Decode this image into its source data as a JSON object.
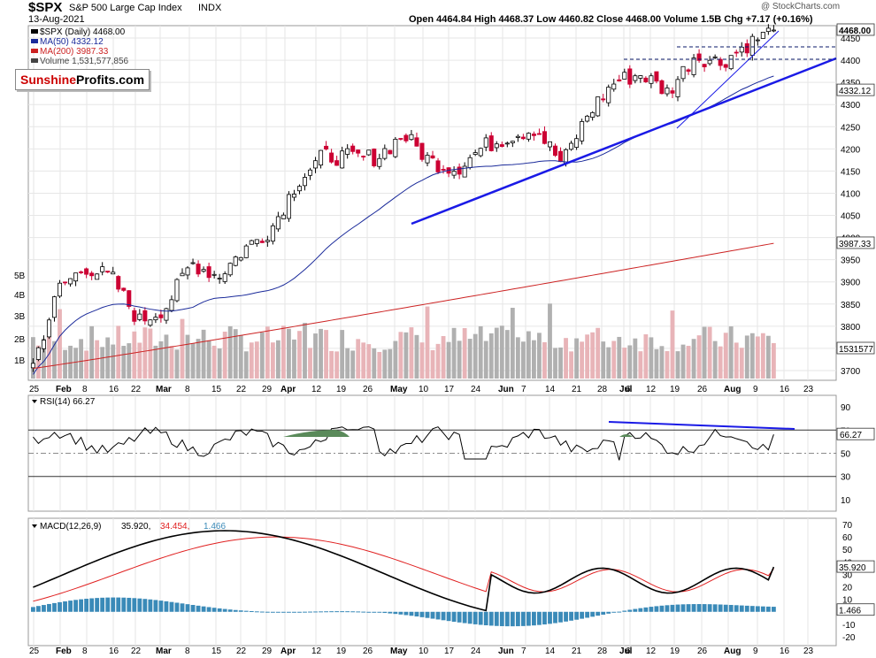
{
  "header": {
    "symbol": "$SPX",
    "name": "S&P 500 Large Cap Index",
    "exchange": "INDX",
    "date": "13-Aug-2021",
    "quote": "Open 4464.84  High 4468.37  Low 4460.82  Close 4468.00  Volume 1.5B  Chg +7.17 (+0.16%)",
    "quote_arrow": "▲",
    "watermark": "@ StockCharts.com"
  },
  "legend": {
    "spx": "$SPX (Daily) 4468.00",
    "ma50": "MA(50) 4332.12",
    "ma200": "MA(200) 3987.33",
    "volume": "Volume 1,531,577,856"
  },
  "logo": {
    "part1": "Sunshine",
    "part2": "Profits.com"
  },
  "colors": {
    "up": "#000000",
    "down": "#cc0033",
    "ma50": "#1a2a9a",
    "ma200": "#cc2222",
    "trend": "#1a1ae6",
    "vol_up": "#b0b0b0",
    "vol_down": "#e8b4b8",
    "macd_hist": "#3a8ab8",
    "rsi_fill": "#5a8a5a"
  },
  "price_axis": {
    "ticks": [
      "4450",
      "4400",
      "4350",
      "4300",
      "4250",
      "4200",
      "4150",
      "4100",
      "4050",
      "4000",
      "3950",
      "3900",
      "3850",
      "3800",
      "3750",
      "3700"
    ],
    "tags": [
      "4468.00",
      "4332.12",
      "3987.33",
      "1531577"
    ]
  },
  "volume_axis": {
    "ticks": [
      "5B",
      "4B",
      "3B",
      "2B",
      "1B"
    ]
  },
  "x_axis": {
    "labels": [
      "25",
      "Feb",
      "8",
      "16",
      "22",
      "Mar",
      "8",
      "15",
      "22",
      "29",
      "Apr",
      "12",
      "19",
      "26",
      "May",
      "10",
      "17",
      "24",
      "Jun",
      "7",
      "14",
      "21",
      "28",
      "Jul",
      "6",
      "12",
      "19",
      "26",
      "Aug",
      "9",
      "16",
      "23"
    ]
  },
  "rsi": {
    "title": "RSI(14) 66.27",
    "ticks": [
      "90",
      "70",
      "50",
      "30",
      "10"
    ],
    "tag": "66.27"
  },
  "macd": {
    "title_a": "MACD(12,26,9)",
    "title_b": "35.920,",
    "title_c": "34.454,",
    "title_d": "1.466",
    "ticks": [
      "70",
      "60",
      "50",
      "40",
      "30",
      "20",
      "10",
      "0",
      "-10",
      "-20"
    ],
    "tags": [
      "35.920",
      "1.466"
    ]
  },
  "chart_data": [
    {
      "type": "candlestick",
      "title": "$SPX S&P 500 Large Cap Index INDX",
      "x_range": [
        "2021-01-25",
        "2021-08-13"
      ],
      "ylim": [
        3680,
        4480
      ],
      "ohlc_summary_last": {
        "date": "2021-08-13",
        "open": 4464.84,
        "high": 4468.37,
        "low": 4460.82,
        "close": 4468.0,
        "volume": 1531577856
      },
      "weekly_closes": [
        {
          "week": "Jan 25",
          "close": 3714
        },
        {
          "week": "Feb 1",
          "close": 3887
        },
        {
          "week": "Feb 8",
          "close": 3934
        },
        {
          "week": "Feb 16",
          "close": 3907
        },
        {
          "week": "Feb 22",
          "close": 3811
        },
        {
          "week": "Mar 1",
          "close": 3842
        },
        {
          "week": "Mar 8",
          "close": 3943
        },
        {
          "week": "Mar 15",
          "close": 3913
        },
        {
          "week": "Mar 22",
          "close": 3975
        },
        {
          "week": "Mar 29",
          "close": 4020
        },
        {
          "week": "Apr 5",
          "close": 4128
        },
        {
          "week": "Apr 12",
          "close": 4185
        },
        {
          "week": "Apr 19",
          "close": 4180
        },
        {
          "week": "Apr 26",
          "close": 4181
        },
        {
          "week": "May 3",
          "close": 4232
        },
        {
          "week": "May 10",
          "close": 4173
        },
        {
          "week": "May 17",
          "close": 4155
        },
        {
          "week": "May 24",
          "close": 4204
        },
        {
          "week": "Jun 1",
          "close": 4229
        },
        {
          "week": "Jun 7",
          "close": 4247
        },
        {
          "week": "Jun 14",
          "close": 4166
        },
        {
          "week": "Jun 21",
          "close": 4281
        },
        {
          "week": "Jun 28",
          "close": 4352
        },
        {
          "week": "Jul 6",
          "close": 4369
        },
        {
          "week": "Jul 12",
          "close": 4327
        },
        {
          "week": "Jul 19",
          "close": 4411
        },
        {
          "week": "Jul 26",
          "close": 4395
        },
        {
          "week": "Aug 2",
          "close": 4436
        },
        {
          "week": "Aug 9",
          "close": 4468
        }
      ],
      "ma50_last": 4332.12,
      "ma200_last": 3987.33
    },
    {
      "type": "line",
      "title": "RSI(14) 66.27",
      "ylim": [
        0,
        100
      ],
      "levels": [
        70,
        30
      ],
      "last": 66.27
    },
    {
      "type": "line+histogram",
      "title": "MACD(12,26,9)",
      "ylim": [
        -25,
        75
      ],
      "series": [
        {
          "name": "MACD",
          "last": 35.92
        },
        {
          "name": "Signal",
          "last": 34.454
        },
        {
          "name": "Histogram",
          "last": 1.466
        }
      ]
    }
  ]
}
